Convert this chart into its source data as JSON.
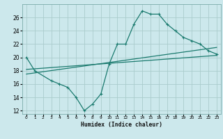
{
  "title": "",
  "xlabel": "Humidex (Indice chaleur)",
  "ylabel": "",
  "bg_color": "#cce8ec",
  "grid_color": "#aacccc",
  "line_color": "#1a7a6e",
  "xlim": [
    -0.5,
    23.5
  ],
  "ylim": [
    11.5,
    28
  ],
  "xticks": [
    0,
    1,
    2,
    3,
    4,
    5,
    6,
    7,
    8,
    9,
    10,
    11,
    12,
    13,
    14,
    15,
    16,
    17,
    18,
    19,
    20,
    21,
    22,
    23
  ],
  "yticks": [
    12,
    14,
    16,
    18,
    20,
    22,
    24,
    26
  ],
  "main_x": [
    0,
    1,
    3,
    4,
    5,
    6,
    7,
    8,
    9,
    10,
    11,
    12,
    13,
    14,
    15,
    16,
    17,
    18,
    19,
    20,
    21,
    22,
    23
  ],
  "main_y": [
    20,
    18,
    16.5,
    16,
    15.5,
    14,
    12,
    13,
    14.5,
    19,
    22,
    22,
    25,
    27,
    26.5,
    26.5,
    25,
    24,
    23,
    22.5,
    22,
    21,
    20.5
  ],
  "line2_x": [
    0,
    23
  ],
  "line2_y": [
    18.2,
    20.3
  ],
  "line3_x": [
    0,
    23
  ],
  "line3_y": [
    17.5,
    21.5
  ]
}
